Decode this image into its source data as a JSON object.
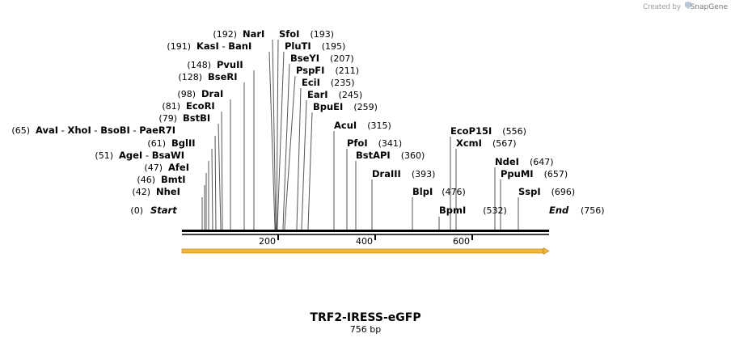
{
  "branding": {
    "created_by": "Created by",
    "product": "SnapGene"
  },
  "map": {
    "title": "TRF2-IRESS-eGFP",
    "length_label": "756 bp",
    "total_bp": 756,
    "start": {
      "label": "Start",
      "pos": "(0)"
    },
    "end": {
      "label": "End",
      "pos": "(756)"
    },
    "ruler_ticks": [
      "200",
      "400",
      "600"
    ],
    "feature_color": "#f5b63a"
  },
  "sites": [
    {
      "id": "nhei",
      "pos": "(42)",
      "names": [
        "NheI"
      ]
    },
    {
      "id": "bmti",
      "pos": "(46)",
      "names": [
        "BmtI"
      ]
    },
    {
      "id": "afei",
      "pos": "(47)",
      "names": [
        "AfeI"
      ]
    },
    {
      "id": "agei",
      "pos": "(51)",
      "names": [
        "AgeI",
        "BsaWI"
      ]
    },
    {
      "id": "bglii",
      "pos": "(61)",
      "names": [
        "BglII"
      ]
    },
    {
      "id": "avai",
      "pos": "(65)",
      "names": [
        "AvaI",
        "XhoI",
        "BsoBI",
        "PaeR7I"
      ]
    },
    {
      "id": "bstbi",
      "pos": "(79)",
      "names": [
        "BstBI"
      ]
    },
    {
      "id": "ecori",
      "pos": "(81)",
      "names": [
        "EcoRI"
      ]
    },
    {
      "id": "drai",
      "pos": "(98)",
      "names": [
        "DraI"
      ]
    },
    {
      "id": "bseri",
      "pos": "(128)",
      "names": [
        "BseRI"
      ]
    },
    {
      "id": "pvuii",
      "pos": "(148)",
      "names": [
        "PvuII"
      ]
    },
    {
      "id": "kasi",
      "pos": "(191)",
      "names": [
        "KasI",
        "BanI"
      ]
    },
    {
      "id": "nari",
      "pos": "(192)",
      "names": [
        "NarI"
      ]
    },
    {
      "id": "sfoi",
      "pos": "(193)",
      "names": [
        "SfoI"
      ]
    },
    {
      "id": "pluti",
      "pos": "(195)",
      "names": [
        "PluTI"
      ]
    },
    {
      "id": "bseyi",
      "pos": "(207)",
      "names": [
        "BseYI"
      ]
    },
    {
      "id": "pspfi",
      "pos": "(211)",
      "names": [
        "PspFI"
      ]
    },
    {
      "id": "ecii",
      "pos": "(235)",
      "names": [
        "EciI"
      ]
    },
    {
      "id": "eari",
      "pos": "(245)",
      "names": [
        "EarI"
      ]
    },
    {
      "id": "bpuei",
      "pos": "(259)",
      "names": [
        "BpuEI"
      ]
    },
    {
      "id": "acui",
      "pos": "(315)",
      "names": [
        "AcuI"
      ]
    },
    {
      "id": "pfoi",
      "pos": "(341)",
      "names": [
        "PfoI"
      ]
    },
    {
      "id": "bstapi",
      "pos": "(360)",
      "names": [
        "BstAPI"
      ]
    },
    {
      "id": "draiii",
      "pos": "(393)",
      "names": [
        "DraIII"
      ]
    },
    {
      "id": "blpi",
      "pos": "(476)",
      "names": [
        "BlpI"
      ]
    },
    {
      "id": "bpmi",
      "pos": "(532)",
      "names": [
        "BpmI"
      ]
    },
    {
      "id": "ecop15i",
      "pos": "(556)",
      "names": [
        "EcoP15I"
      ]
    },
    {
      "id": "xcmi",
      "pos": "(567)",
      "names": [
        "XcmI"
      ]
    },
    {
      "id": "ndei",
      "pos": "(647)",
      "names": [
        "NdeI"
      ]
    },
    {
      "id": "ppumi",
      "pos": "(657)",
      "names": [
        "PpuMI"
      ]
    },
    {
      "id": "sspi",
      "pos": "(696)",
      "names": [
        "SspI"
      ]
    }
  ]
}
